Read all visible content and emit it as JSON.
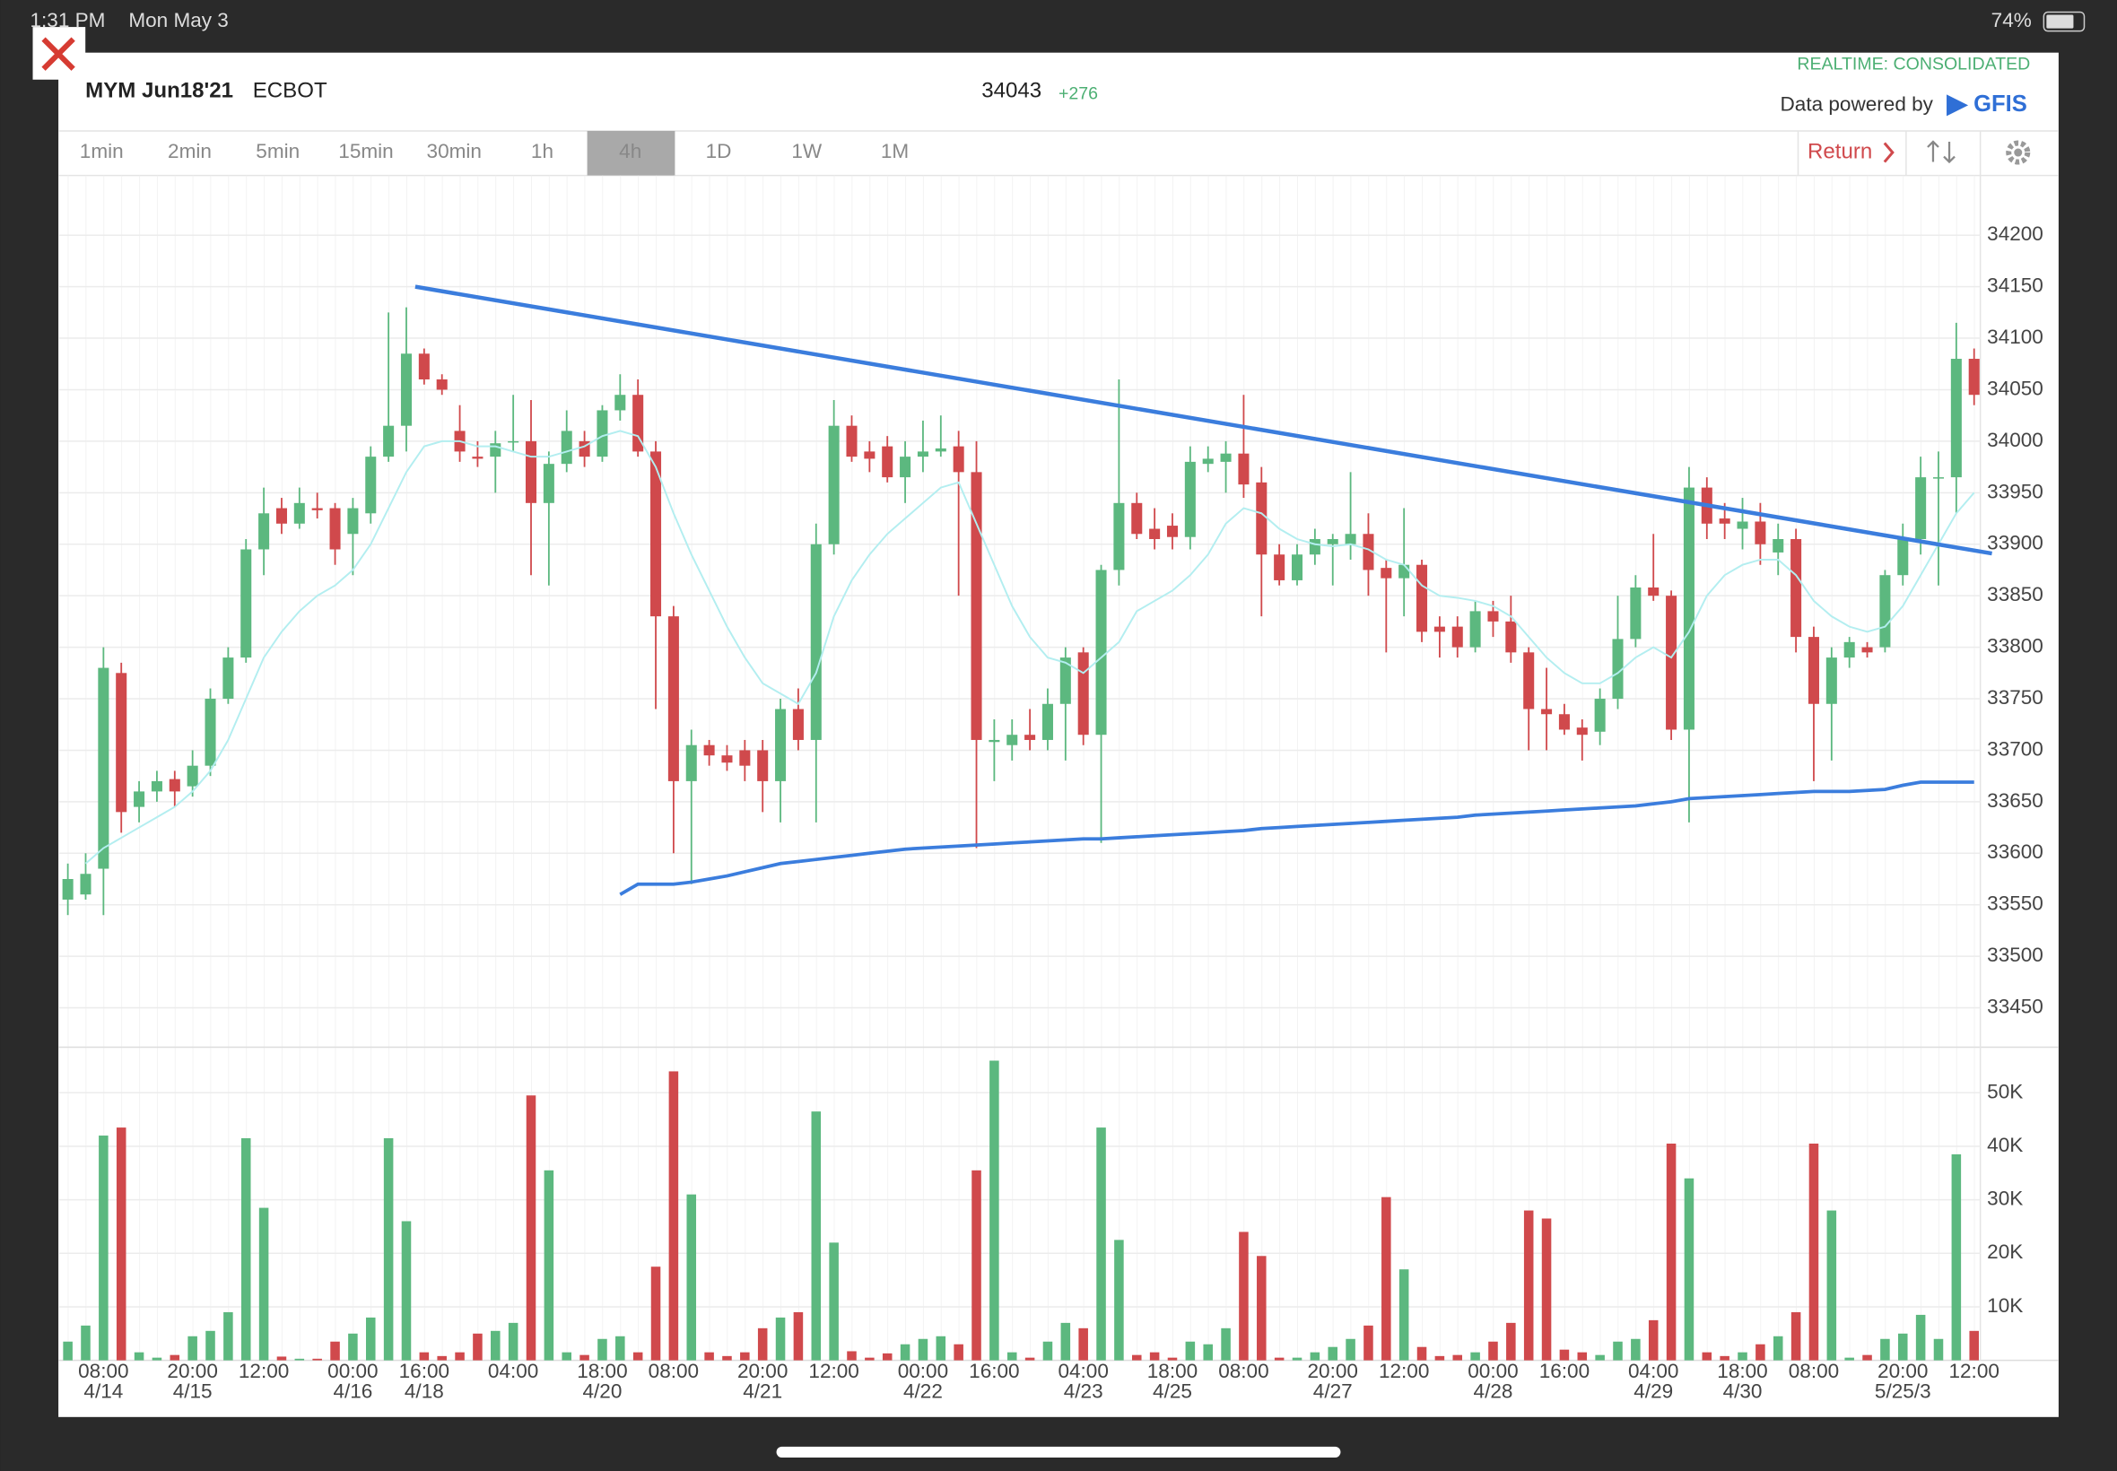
{
  "status_bar": {
    "time": "1:31 PM",
    "date": "Mon May 3",
    "battery": "74%"
  },
  "header": {
    "symbol": "MYM Jun18'21",
    "exchange": "ECBOT",
    "price": "34043",
    "change": "+276",
    "feed": "REALTIME: CONSOLIDATED",
    "powered_by": "Data powered by",
    "provider": "GFIS"
  },
  "toolbar": {
    "intervals": [
      "1min",
      "2min",
      "5min",
      "15min",
      "30min",
      "1h",
      "4h",
      "1D",
      "1W",
      "1M"
    ],
    "active": 6,
    "return": "Return"
  },
  "chart_data": {
    "type": "candlestick",
    "categories": [
      null,
      null,
      "08:00",
      null,
      null,
      null,
      null,
      "20:00",
      null,
      null,
      null,
      "12:00",
      null,
      null,
      null,
      null,
      "00:00",
      null,
      null,
      null,
      "16:00",
      null,
      null,
      null,
      null,
      "04:00",
      null,
      null,
      null,
      null,
      "18:00",
      null,
      null,
      null,
      "08:00",
      null,
      null,
      null,
      null,
      "20:00",
      null,
      null,
      null,
      "12:00",
      null,
      null,
      null,
      null,
      "00:00",
      null,
      null,
      null,
      "16:00",
      null,
      null,
      null,
      null,
      "04:00",
      null,
      null,
      null,
      null,
      "18:00",
      null,
      null,
      null,
      "08:00",
      null,
      null,
      null,
      null,
      "20:00",
      null,
      null,
      null,
      "12:00",
      null,
      null,
      null,
      null,
      "00:00",
      null,
      null,
      null,
      "16:00",
      null,
      null,
      null,
      null,
      "04:00",
      null,
      null,
      null,
      null,
      "18:00",
      null,
      null,
      null,
      "08:00",
      null,
      null,
      null,
      null,
      "20:00",
      null,
      null,
      null,
      "12:00"
    ],
    "dates": [
      null,
      null,
      "4/14",
      null,
      null,
      null,
      null,
      "4/15",
      null,
      null,
      null,
      null,
      null,
      null,
      null,
      null,
      "4/16",
      null,
      null,
      null,
      "4/18",
      null,
      null,
      null,
      null,
      null,
      null,
      null,
      null,
      null,
      "4/20",
      null,
      null,
      null,
      null,
      null,
      null,
      null,
      null,
      "4/21",
      null,
      null,
      null,
      null,
      null,
      null,
      null,
      null,
      "4/22",
      null,
      null,
      null,
      null,
      null,
      null,
      null,
      null,
      "4/23",
      null,
      null,
      null,
      null,
      "4/25",
      null,
      null,
      null,
      null,
      null,
      null,
      null,
      null,
      "4/27",
      null,
      null,
      null,
      null,
      null,
      null,
      null,
      null,
      "4/28",
      null,
      null,
      null,
      null,
      null,
      null,
      null,
      null,
      "4/29",
      null,
      null,
      null,
      null,
      "4/30",
      null,
      null,
      null,
      null,
      null,
      null,
      null,
      null,
      "5/25/3",
      null,
      null,
      null,
      null
    ],
    "open": [
      33555,
      33560,
      33585,
      33775,
      33645,
      33660,
      33672,
      33665,
      33685,
      33750,
      33790,
      33895,
      33935,
      33920,
      33935,
      33935,
      33910,
      33930,
      33985,
      34015,
      34085,
      34060,
      34010,
      33985,
      33985,
      34000,
      34000,
      33940,
      33978,
      34000,
      33985,
      34030,
      34045,
      33990,
      33830,
      33670,
      33705,
      33695,
      33700,
      33700,
      33670,
      33740,
      33710,
      33900,
      34015,
      33990,
      33995,
      33965,
      33985,
      33990,
      33995,
      33970,
      33708,
      33705,
      33715,
      33710,
      33745,
      33795,
      33715,
      33875,
      33940,
      33915,
      33918,
      33907,
      33978,
      33980,
      33988,
      33960,
      33890,
      33865,
      33890,
      33900,
      33900,
      33910,
      33877,
      33867,
      33880,
      33820,
      33820,
      33800,
      33835,
      33825,
      33795,
      33740,
      33735,
      33722,
      33718,
      33750,
      33808,
      33858,
      33850,
      33720,
      33955,
      33925,
      33915,
      33922,
      33892,
      33905,
      33810,
      33745,
      33790,
      33800,
      33800,
      33870,
      33905,
      33965,
      33965,
      34080
    ],
    "high": [
      33590,
      33600,
      33800,
      33785,
      33670,
      33680,
      33680,
      33700,
      33760,
      33800,
      33905,
      33955,
      33945,
      33955,
      33950,
      33940,
      33945,
      33995,
      34125,
      34130,
      34090,
      34065,
      34035,
      34000,
      34010,
      34045,
      34040,
      33990,
      34030,
      34010,
      34035,
      34065,
      34060,
      34000,
      33840,
      33720,
      33710,
      33705,
      33710,
      33710,
      33750,
      33760,
      33920,
      34040,
      34025,
      34000,
      34005,
      34000,
      34020,
      34025,
      34010,
      34000,
      33730,
      33730,
      33740,
      33760,
      33800,
      33800,
      33880,
      34060,
      33950,
      33935,
      33930,
      33995,
      33995,
      34000,
      34045,
      33975,
      33900,
      33900,
      33915,
      33910,
      33970,
      33930,
      33885,
      33935,
      33885,
      33830,
      33830,
      33845,
      33845,
      33850,
      33800,
      33780,
      33745,
      33730,
      33760,
      33850,
      33870,
      33910,
      33855,
      33975,
      33965,
      33940,
      33945,
      33940,
      33920,
      33915,
      33820,
      33800,
      33810,
      33805,
      33875,
      33920,
      33985,
      33990,
      34115,
      34090
    ],
    "low": [
      33540,
      33555,
      33540,
      33620,
      33630,
      33650,
      33645,
      33655,
      33675,
      33745,
      33785,
      33870,
      33910,
      33915,
      33925,
      33880,
      33870,
      33920,
      33980,
      33990,
      34055,
      34045,
      33980,
      33975,
      33950,
      33990,
      33870,
      33860,
      33970,
      33975,
      33980,
      34020,
      33985,
      33740,
      33600,
      33570,
      33685,
      33680,
      33670,
      33640,
      33630,
      33700,
      33630,
      33890,
      33980,
      33970,
      33960,
      33940,
      33970,
      33985,
      33850,
      33605,
      33670,
      33690,
      33700,
      33700,
      33690,
      33705,
      33610,
      33860,
      33905,
      33895,
      33895,
      33895,
      33970,
      33950,
      33945,
      33830,
      33860,
      33860,
      33880,
      33860,
      33885,
      33850,
      33795,
      33830,
      33805,
      33790,
      33790,
      33795,
      33810,
      33785,
      33700,
      33700,
      33715,
      33690,
      33705,
      33740,
      33800,
      33845,
      33710,
      33630,
      33905,
      33905,
      33895,
      33880,
      33870,
      33795,
      33670,
      33690,
      33780,
      33790,
      33795,
      33860,
      33890,
      33860,
      33930,
      34035
    ],
    "close": [
      33575,
      33580,
      33780,
      33640,
      33660,
      33670,
      33660,
      33685,
      33750,
      33790,
      33895,
      33930,
      33920,
      33940,
      33933,
      33895,
      33935,
      33985,
      34015,
      34085,
      34060,
      34050,
      33990,
      33983,
      33998,
      34000,
      33940,
      33978,
      34010,
      33985,
      34030,
      34045,
      33990,
      33830,
      33670,
      33705,
      33695,
      33688,
      33685,
      33670,
      33740,
      33710,
      33900,
      34015,
      33985,
      33983,
      33965,
      33985,
      33990,
      33993,
      33970,
      33710,
      33710,
      33715,
      33710,
      33745,
      33790,
      33715,
      33875,
      33940,
      33910,
      33905,
      33907,
      33980,
      33983,
      33988,
      33958,
      33890,
      33865,
      33890,
      33905,
      33905,
      33910,
      33875,
      33867,
      33880,
      33815,
      33815,
      33800,
      33835,
      33825,
      33795,
      33740,
      33735,
      33720,
      33715,
      33750,
      33808,
      33858,
      33850,
      33720,
      33955,
      33920,
      33920,
      33922,
      33900,
      33905,
      33810,
      33745,
      33790,
      33805,
      33795,
      33870,
      33905,
      33965,
      33965,
      34080,
      34045
    ],
    "up_color": "#5cb87f",
    "down_color": "#d0494c",
    "ylim": [
      33413,
      34258
    ],
    "yticks": [
      33450,
      33500,
      33550,
      33600,
      33650,
      33700,
      33750,
      33800,
      33850,
      33900,
      33950,
      34000,
      34050,
      34100,
      34150,
      34200
    ],
    "grid": true,
    "overlays": [
      {
        "color": "#b3eef0",
        "values": [
          null,
          33590,
          33605,
          33615,
          33625,
          33635,
          33645,
          33660,
          33680,
          33710,
          33750,
          33790,
          33815,
          33835,
          33850,
          33860,
          33875,
          33900,
          33935,
          33970,
          33995,
          34000,
          34000,
          33995,
          33995,
          33990,
          33985,
          33985,
          33990,
          33995,
          34005,
          34010,
          34005,
          33975,
          33930,
          33890,
          33855,
          33820,
          33790,
          33765,
          33755,
          33745,
          33775,
          33830,
          33865,
          33890,
          33910,
          33925,
          33940,
          33955,
          33960,
          33920,
          33880,
          33840,
          33810,
          33790,
          33785,
          33775,
          33790,
          33805,
          33835,
          33845,
          33855,
          33870,
          33890,
          33920,
          33935,
          33930,
          33915,
          33905,
          33900,
          33898,
          33900,
          33895,
          33885,
          33880,
          33860,
          33850,
          33848,
          33845,
          33840,
          33830,
          33810,
          33790,
          33775,
          33765,
          33765,
          33775,
          33790,
          33800,
          33790,
          33815,
          33850,
          33870,
          33880,
          33885,
          33885,
          33870,
          33845,
          33830,
          33820,
          33815,
          33820,
          33840,
          33870,
          33900,
          33930,
          33950
        ]
      },
      {
        "color": "#3b7ddd",
        "values": [
          null,
          null,
          null,
          null,
          null,
          null,
          null,
          null,
          null,
          null,
          null,
          null,
          null,
          null,
          null,
          null,
          null,
          null,
          null,
          null,
          null,
          null,
          null,
          null,
          null,
          null,
          null,
          null,
          null,
          null,
          null,
          33560,
          33570,
          33570,
          33570,
          33572,
          33575,
          33578,
          33582,
          33586,
          33590,
          33592,
          33594,
          33596,
          33598,
          33600,
          33602,
          33604,
          33605,
          33606,
          33607,
          33608,
          33609,
          33610,
          33611,
          33612,
          33613,
          33614,
          33614,
          33615,
          33616,
          33617,
          33618,
          33619,
          33620,
          33621,
          33622,
          33624,
          33625,
          33626,
          33627,
          33628,
          33629,
          33630,
          33631,
          33632,
          33633,
          33634,
          33635,
          33637,
          33638,
          33639,
          33640,
          33641,
          33642,
          33643,
          33644,
          33645,
          33646,
          33648,
          33650,
          33653,
          33654,
          33655,
          33656,
          33657,
          33658,
          33659,
          33660,
          33660,
          33660,
          33661,
          33662,
          33666,
          33669,
          33669,
          33669,
          33669
        ]
      }
    ],
    "trendline": {
      "color": "#3b7ddd",
      "x": [
        19.5,
        108
      ],
      "y": [
        34150,
        33891
      ]
    },
    "volume": {
      "values": [
        3500,
        6500,
        42000,
        43500,
        1500,
        500,
        1000,
        4500,
        5500,
        9000,
        41500,
        28500,
        700,
        300,
        300,
        3500,
        5000,
        8000,
        41500,
        26000,
        1500,
        800,
        1500,
        5000,
        5500,
        7000,
        49500,
        35500,
        1500,
        1000,
        4000,
        4500,
        1500,
        17500,
        54000,
        31000,
        1500,
        800,
        1500,
        6000,
        8000,
        9000,
        46500,
        22000,
        1700,
        500,
        1300,
        3000,
        4000,
        4500,
        3000,
        35500,
        56000,
        1500,
        500,
        3500,
        7000,
        6000,
        43500,
        22500,
        1000,
        1500,
        500,
        3500,
        3000,
        6000,
        24000,
        19500,
        500,
        500,
        1500,
        2500,
        4000,
        6500,
        30500,
        17000,
        2500,
        800,
        1000,
        1500,
        3500,
        7000,
        28000,
        26500,
        2000,
        1500,
        1000,
        3500,
        4000,
        7500,
        40500,
        34000,
        1500,
        800,
        1500,
        3000,
        4500,
        9000,
        40500,
        28000,
        500,
        1000,
        4000,
        5000,
        8500,
        4000,
        38500,
        5500
      ],
      "ylim": [
        0,
        58000
      ],
      "yticks": [
        {
          "value": 10000,
          "label": "10K"
        },
        {
          "value": 20000,
          "label": "20K"
        },
        {
          "value": 30000,
          "label": "30K"
        },
        {
          "value": 40000,
          "label": "40K"
        },
        {
          "value": 50000,
          "label": "50K"
        }
      ]
    }
  }
}
